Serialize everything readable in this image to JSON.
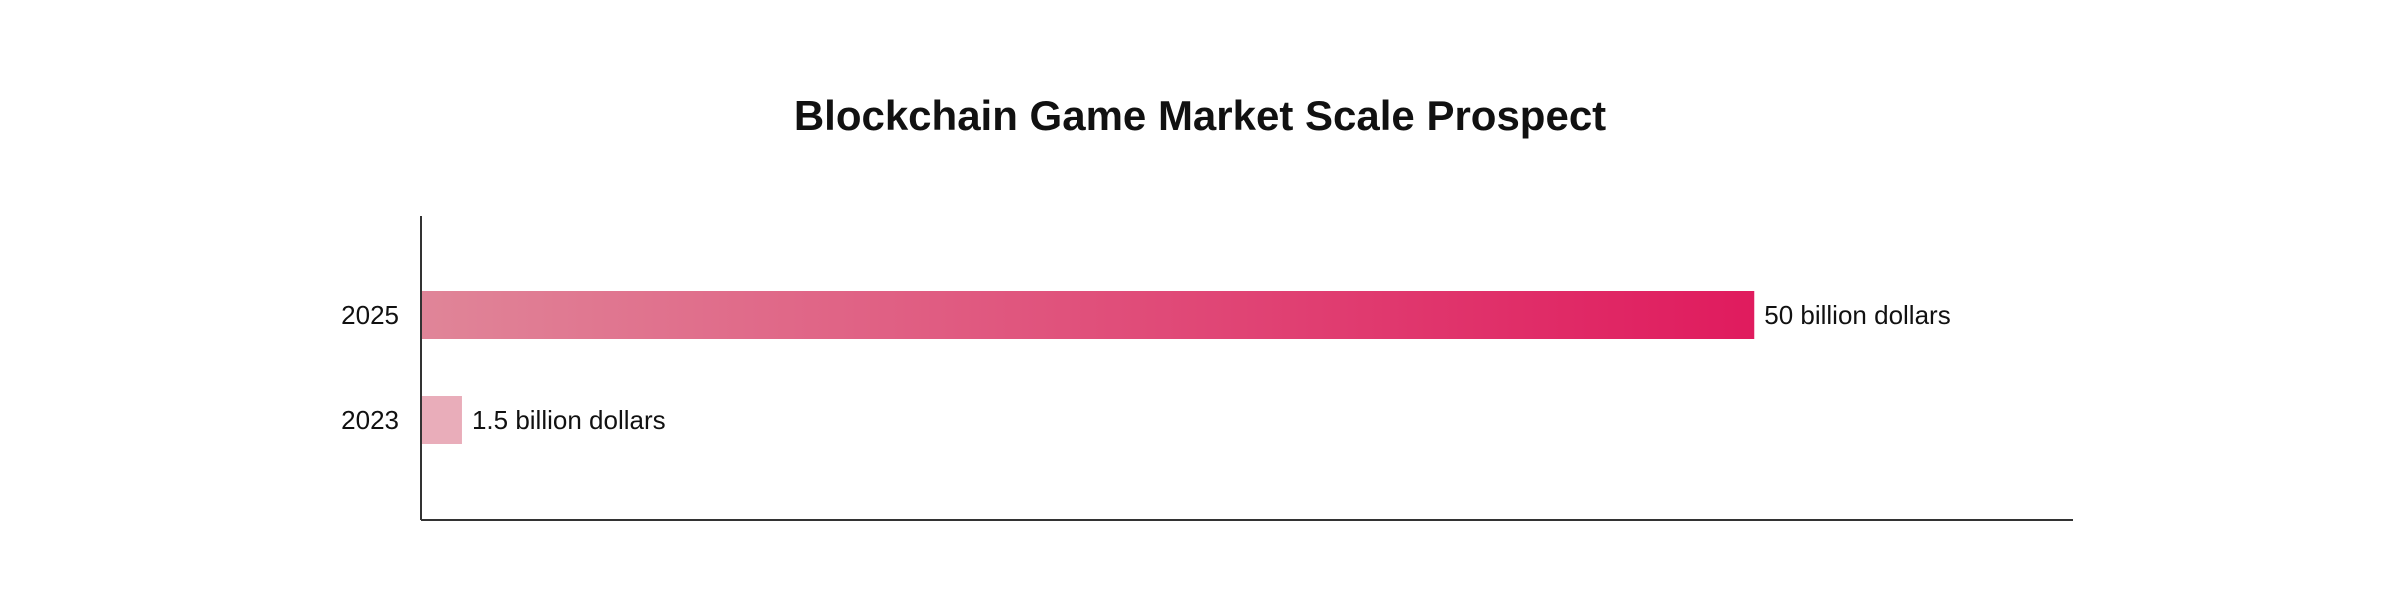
{
  "chart_data": {
    "type": "bar",
    "orientation": "horizontal",
    "title": "Blockchain Game Market Scale Prospect",
    "xlabel": "",
    "ylabel": "",
    "categories": [
      "2025",
      "2023"
    ],
    "values": [
      50,
      1.5
    ],
    "value_labels": [
      "50 billion dollars",
      "1.5 billion dollars"
    ],
    "unit": "billion dollars",
    "xlim": [
      0,
      62
    ],
    "grid": false,
    "legend": "none",
    "colors": {
      "gradient_start": "#e08598",
      "gradient_end": "#e01b5e",
      "bar_light": "#e9adba",
      "axis": "#333333"
    }
  }
}
